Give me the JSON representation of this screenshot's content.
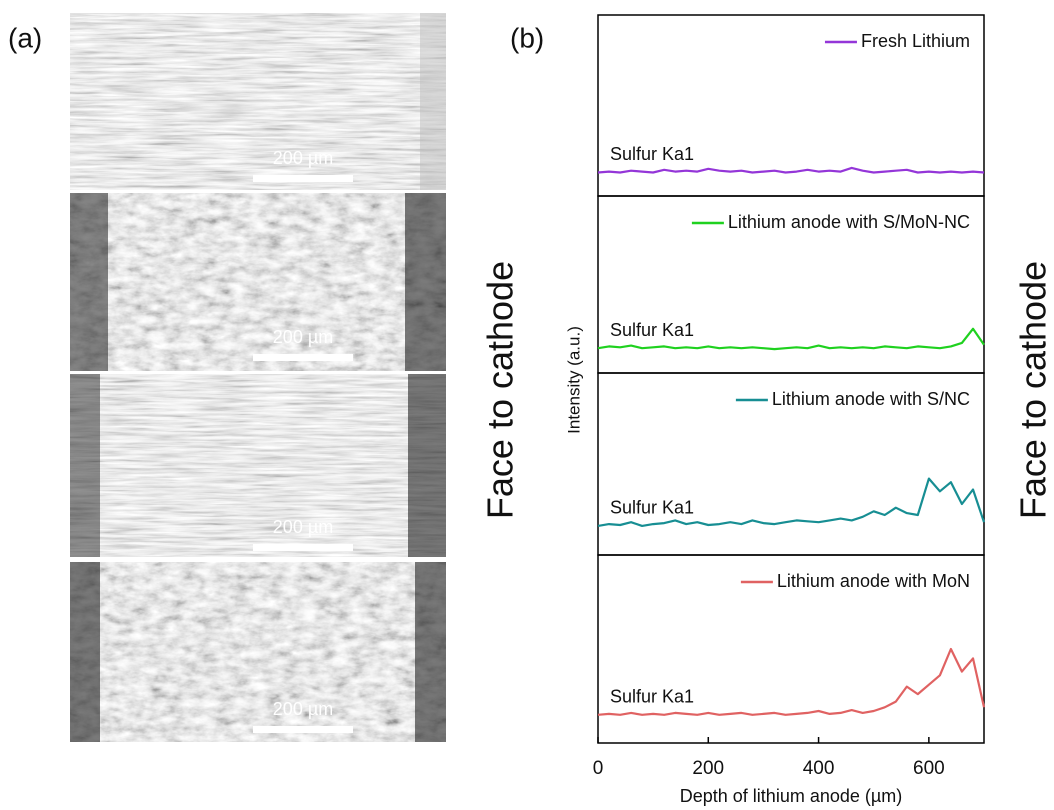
{
  "panel_a": {
    "label": "(a)",
    "scale_bars": [
      "200 µm",
      "200 µm",
      "200 µm",
      "200 µm"
    ],
    "side_label": "Face to cathode"
  },
  "panel_b": {
    "label": "(b)",
    "ylabel": "Intensity (a.u.)",
    "side_label": "Face to cathode"
  },
  "chart_data": [
    {
      "type": "line",
      "legend": "upper right",
      "annotation": "Sulfur Ka1",
      "xlim": [
        0,
        700
      ],
      "ylim": [
        0,
        10
      ],
      "x": [
        0,
        20,
        40,
        60,
        80,
        100,
        120,
        140,
        160,
        180,
        200,
        220,
        240,
        260,
        280,
        300,
        320,
        340,
        360,
        380,
        400,
        420,
        440,
        460,
        480,
        500,
        520,
        540,
        560,
        580,
        600,
        620,
        640,
        660,
        680,
        700
      ],
      "series": [
        {
          "name": "Fresh Lithium",
          "color": "#9436d8",
          "values": [
            1.3,
            1.35,
            1.3,
            1.4,
            1.35,
            1.3,
            1.45,
            1.35,
            1.4,
            1.35,
            1.5,
            1.4,
            1.35,
            1.4,
            1.3,
            1.35,
            1.4,
            1.3,
            1.35,
            1.45,
            1.35,
            1.4,
            1.35,
            1.55,
            1.4,
            1.3,
            1.35,
            1.4,
            1.45,
            1.3,
            1.35,
            1.3,
            1.35,
            1.3,
            1.35,
            1.3
          ]
        }
      ]
    },
    {
      "type": "line",
      "legend": "upper right",
      "annotation": "Sulfur Ka1",
      "xlim": [
        0,
        700
      ],
      "ylim": [
        0,
        10
      ],
      "x": [
        0,
        20,
        40,
        60,
        80,
        100,
        120,
        140,
        160,
        180,
        200,
        220,
        240,
        260,
        280,
        300,
        320,
        340,
        360,
        380,
        400,
        420,
        440,
        460,
        480,
        500,
        520,
        540,
        560,
        580,
        600,
        620,
        640,
        660,
        680,
        700
      ],
      "series": [
        {
          "name": "Lithium anode with S/MoN-NC",
          "color": "#1fd11f",
          "values": [
            1.4,
            1.5,
            1.45,
            1.55,
            1.4,
            1.45,
            1.5,
            1.4,
            1.45,
            1.4,
            1.5,
            1.4,
            1.45,
            1.4,
            1.45,
            1.4,
            1.35,
            1.4,
            1.45,
            1.4,
            1.55,
            1.4,
            1.45,
            1.4,
            1.45,
            1.4,
            1.5,
            1.45,
            1.4,
            1.5,
            1.45,
            1.4,
            1.5,
            1.7,
            2.5,
            1.6
          ]
        }
      ]
    },
    {
      "type": "line",
      "legend": "upper right",
      "annotation": "Sulfur Ka1",
      "xlim": [
        0,
        700
      ],
      "ylim": [
        0,
        10
      ],
      "x": [
        0,
        20,
        40,
        60,
        80,
        100,
        120,
        140,
        160,
        180,
        200,
        220,
        240,
        260,
        280,
        300,
        320,
        340,
        360,
        380,
        400,
        420,
        440,
        460,
        480,
        500,
        520,
        540,
        560,
        580,
        600,
        620,
        640,
        660,
        680,
        700
      ],
      "series": [
        {
          "name": "Lithium anode with S/NC",
          "color": "#178e93",
          "values": [
            1.6,
            1.7,
            1.65,
            1.8,
            1.6,
            1.7,
            1.75,
            1.9,
            1.7,
            1.8,
            1.65,
            1.7,
            1.8,
            1.7,
            1.9,
            1.75,
            1.7,
            1.8,
            1.9,
            1.85,
            1.8,
            1.9,
            2.0,
            1.9,
            2.1,
            2.4,
            2.2,
            2.6,
            2.3,
            2.2,
            4.2,
            3.5,
            4.0,
            2.8,
            3.6,
            1.8
          ]
        }
      ]
    },
    {
      "type": "line",
      "legend": "upper right",
      "annotation": "Sulfur Ka1",
      "xlim": [
        0,
        700
      ],
      "ylim": [
        0,
        10
      ],
      "xticks": [
        0,
        200,
        400,
        600
      ],
      "xlabel": "Depth of lithium anode (µm)",
      "x": [
        0,
        20,
        40,
        60,
        80,
        100,
        120,
        140,
        160,
        180,
        200,
        220,
        240,
        260,
        280,
        300,
        320,
        340,
        360,
        380,
        400,
        420,
        440,
        460,
        480,
        500,
        520,
        540,
        560,
        580,
        600,
        620,
        640,
        660,
        680,
        700
      ],
      "series": [
        {
          "name": "Lithium anode with MoN",
          "color": "#e06262",
          "values": [
            1.5,
            1.55,
            1.5,
            1.6,
            1.5,
            1.55,
            1.5,
            1.6,
            1.55,
            1.5,
            1.6,
            1.5,
            1.55,
            1.6,
            1.5,
            1.55,
            1.6,
            1.5,
            1.55,
            1.6,
            1.7,
            1.55,
            1.6,
            1.75,
            1.6,
            1.7,
            1.9,
            2.2,
            3.0,
            2.6,
            3.1,
            3.6,
            5.0,
            3.8,
            4.5,
            1.9
          ]
        }
      ]
    }
  ]
}
